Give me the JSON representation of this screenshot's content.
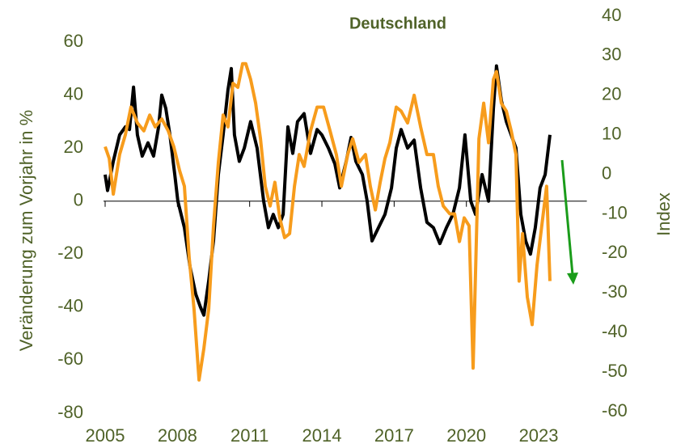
{
  "chart_data": {
    "type": "line",
    "title": "Deutschland",
    "ylabel": "Veränderung zum Vorjahr in %",
    "y2label": "Index",
    "xlim": [
      2005,
      2025
    ],
    "xticks": [
      2005,
      2008,
      2011,
      2014,
      2017,
      2020,
      2023
    ],
    "ylim": [
      -80,
      60
    ],
    "yticks": [
      -80,
      -60,
      -40,
      -20,
      0,
      20,
      40,
      60
    ],
    "y2lim": [
      -60,
      40
    ],
    "y2ticks": [
      -60,
      -50,
      -40,
      -30,
      -20,
      -10,
      0,
      10,
      20,
      30,
      40
    ],
    "series": [
      {
        "color": "#000000",
        "axis": "y",
        "x": [
          2005.0,
          2005.1,
          2005.34,
          2005.6,
          2005.84,
          2006.01,
          2006.18,
          2006.34,
          2006.54,
          2006.78,
          2007.01,
          2007.22,
          2007.35,
          2007.52,
          2007.69,
          2007.89,
          2008.02,
          2008.29,
          2008.53,
          2008.76,
          2008.96,
          2009.1,
          2009.3,
          2009.5,
          2009.7,
          2009.9,
          2010.1,
          2010.24,
          2010.37,
          2010.57,
          2010.78,
          2011.04,
          2011.31,
          2011.58,
          2011.78,
          2011.98,
          2012.19,
          2012.39,
          2012.59,
          2012.79,
          2012.99,
          2013.26,
          2013.53,
          2013.8,
          2014.0,
          2014.27,
          2014.54,
          2014.74,
          2015.01,
          2015.21,
          2015.41,
          2015.68,
          2015.88,
          2016.08,
          2016.35,
          2016.62,
          2016.89,
          2017.09,
          2017.29,
          2017.56,
          2017.83,
          2018.1,
          2018.36,
          2018.63,
          2018.9,
          2019.17,
          2019.44,
          2019.71,
          2019.94,
          2020.18,
          2020.38,
          2020.65,
          2020.92,
          2021.12,
          2021.25,
          2021.45,
          2021.66,
          2021.86,
          2022.06,
          2022.26,
          2022.46,
          2022.66,
          2022.86,
          2023.06,
          2023.27,
          2023.47
        ],
        "values": [
          10,
          4,
          15,
          25,
          28,
          27,
          43,
          25,
          17,
          22,
          17,
          28,
          40,
          35,
          25,
          10,
          0,
          -10,
          -25,
          -35,
          -40,
          -43,
          -30,
          -15,
          10,
          25,
          42,
          50,
          25,
          15,
          20,
          30,
          20,
          0,
          -10,
          -5,
          -10,
          -5,
          28,
          18,
          30,
          33,
          18,
          27,
          25,
          20,
          14,
          5,
          15,
          24,
          15,
          10,
          0,
          -15,
          -10,
          -5,
          5,
          20,
          27,
          20,
          23,
          5,
          -8,
          -10,
          -16,
          -10,
          -5,
          5,
          25,
          0,
          -5,
          10,
          0,
          35,
          51,
          38,
          30,
          25,
          20,
          -5,
          -15,
          -20,
          -10,
          5,
          10,
          25
        ]
      },
      {
        "color": "#f79c1c",
        "axis": "y2",
        "x": [
          2005.0,
          2005.17,
          2005.34,
          2005.6,
          2005.84,
          2006.07,
          2006.34,
          2006.61,
          2006.85,
          2007.08,
          2007.35,
          2007.62,
          2007.85,
          2008.09,
          2008.29,
          2008.49,
          2008.69,
          2008.9,
          2009.1,
          2009.3,
          2009.5,
          2009.7,
          2009.9,
          2010.1,
          2010.31,
          2010.51,
          2010.71,
          2010.84,
          2011.04,
          2011.25,
          2011.45,
          2011.65,
          2011.85,
          2012.05,
          2012.25,
          2012.45,
          2012.66,
          2012.86,
          2013.06,
          2013.26,
          2013.53,
          2013.8,
          2014.07,
          2014.34,
          2014.6,
          2014.81,
          2015.07,
          2015.28,
          2015.54,
          2015.81,
          2016.01,
          2016.22,
          2016.42,
          2016.62,
          2016.82,
          2017.09,
          2017.29,
          2017.56,
          2017.83,
          2018.1,
          2018.36,
          2018.63,
          2018.83,
          2019.04,
          2019.31,
          2019.51,
          2019.71,
          2019.91,
          2020.11,
          2020.28,
          2020.52,
          2020.72,
          2020.92,
          2021.12,
          2021.25,
          2021.45,
          2021.66,
          2021.86,
          2022.06,
          2022.19,
          2022.33,
          2022.53,
          2022.73,
          2022.93,
          2023.13,
          2023.33,
          2023.47
        ],
        "values": [
          7,
          4,
          -5,
          5,
          10,
          17,
          13,
          11,
          15,
          12,
          14,
          11,
          7,
          1,
          -3,
          -21,
          -34,
          -52,
          -44,
          -34,
          -13,
          3,
          15,
          12,
          23,
          22,
          28,
          28,
          24,
          18,
          9,
          -3,
          -8,
          -2,
          -11,
          -16,
          -15,
          -3,
          5,
          2,
          11,
          17,
          17,
          11,
          5,
          -3,
          5,
          9,
          3,
          5,
          -3,
          -9,
          -2,
          4,
          8,
          17,
          16,
          13,
          20,
          12,
          5,
          5,
          -3,
          -8,
          -10,
          -10,
          -17,
          -11,
          -13,
          -49,
          9,
          18,
          8,
          24,
          26,
          18,
          16,
          11,
          5,
          -27,
          -15,
          -31,
          -38,
          -23,
          -13,
          -3,
          -27
        ]
      }
    ]
  }
}
